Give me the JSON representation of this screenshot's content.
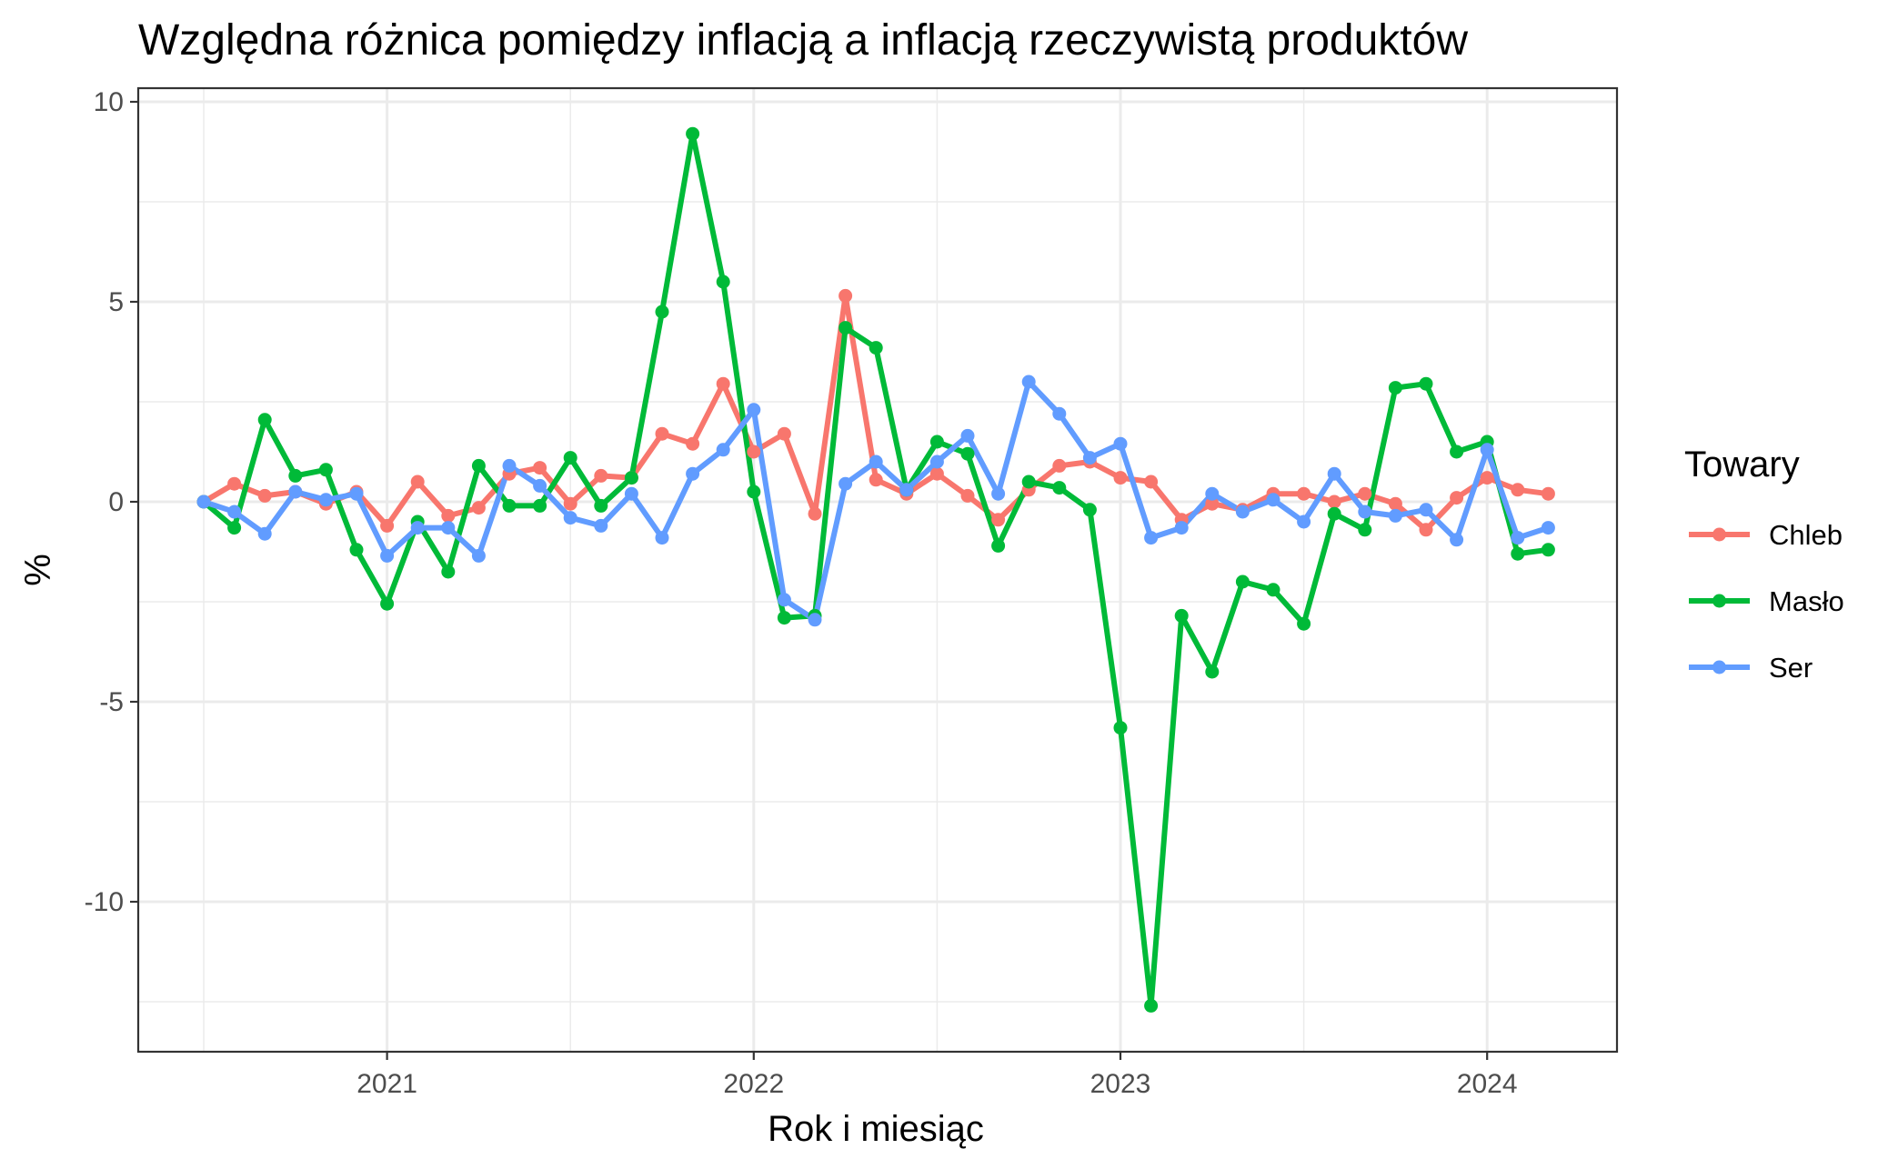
{
  "chart_data": {
    "type": "line",
    "title": "Względna różnica pomiędzy inflacją a inflacją rzeczywistą produktów",
    "xlabel": "Rok i miesiąc",
    "ylabel": "%",
    "x_ticks": [
      "2021",
      "2022",
      "2023",
      "2024"
    ],
    "y_ticks": [
      "10",
      "5",
      "0",
      "-5",
      "-10"
    ],
    "ylim": [
      -13.5,
      10.3
    ],
    "grid": true,
    "legend": {
      "title": "Towary",
      "position": "right"
    },
    "x": [
      "2020-07",
      "2020-08",
      "2020-09",
      "2020-10",
      "2020-11",
      "2020-12",
      "2021-01",
      "2021-02",
      "2021-03",
      "2021-04",
      "2021-05",
      "2021-06",
      "2021-07",
      "2021-08",
      "2021-09",
      "2021-10",
      "2021-11",
      "2021-12",
      "2022-01",
      "2022-02",
      "2022-03",
      "2022-04",
      "2022-05",
      "2022-06",
      "2022-07",
      "2022-08",
      "2022-09",
      "2022-10",
      "2022-11",
      "2022-12",
      "2023-01",
      "2023-02",
      "2023-03",
      "2023-04",
      "2023-05",
      "2023-06",
      "2023-07",
      "2023-08",
      "2023-09",
      "2023-10",
      "2023-11",
      "2023-12",
      "2024-01",
      "2024-02",
      "2024-03"
    ],
    "series": [
      {
        "name": "Chleb",
        "color": "#F8766D",
        "values": [
          0.0,
          0.45,
          0.15,
          0.25,
          -0.05,
          0.25,
          -0.6,
          0.5,
          -0.35,
          -0.15,
          0.7,
          0.85,
          -0.05,
          0.65,
          0.6,
          1.7,
          1.45,
          2.95,
          1.25,
          1.7,
          -0.3,
          5.15,
          0.55,
          0.2,
          0.7,
          0.15,
          -0.45,
          0.3,
          0.9,
          1.0,
          0.6,
          0.5,
          -0.45,
          -0.05,
          -0.2,
          0.2,
          0.2,
          0.0,
          0.2,
          -0.05,
          -0.7,
          0.1,
          0.6,
          0.3,
          0.2
        ]
      },
      {
        "name": "Masło",
        "color": "#00BA38",
        "values": [
          0.0,
          -0.65,
          2.05,
          0.65,
          0.8,
          -1.2,
          -2.55,
          -0.5,
          -1.75,
          0.9,
          -0.1,
          -0.1,
          1.1,
          -0.1,
          0.6,
          4.75,
          9.2,
          5.5,
          0.25,
          -2.9,
          -2.85,
          4.35,
          3.85,
          0.3,
          1.5,
          1.2,
          -1.1,
          0.5,
          0.35,
          -0.2,
          -5.65,
          -12.6,
          -2.85,
          -4.25,
          -2.0,
          -2.2,
          -3.05,
          -0.3,
          -0.7,
          2.85,
          2.95,
          1.25,
          1.5,
          -1.3,
          -1.2
        ]
      },
      {
        "name": "Ser",
        "color": "#619CFF",
        "values": [
          0.0,
          -0.25,
          -0.8,
          0.25,
          0.05,
          0.2,
          -1.35,
          -0.65,
          -0.65,
          -1.35,
          0.9,
          0.4,
          -0.4,
          -0.6,
          0.2,
          -0.9,
          0.7,
          1.3,
          2.3,
          -2.45,
          -2.95,
          0.45,
          1.0,
          0.3,
          1.0,
          1.65,
          0.2,
          3.0,
          2.2,
          1.1,
          1.45,
          -0.9,
          -0.65,
          0.2,
          -0.25,
          0.05,
          -0.5,
          0.7,
          -0.25,
          -0.35,
          -0.2,
          -0.95,
          1.3,
          -0.9,
          -0.65
        ]
      }
    ]
  }
}
